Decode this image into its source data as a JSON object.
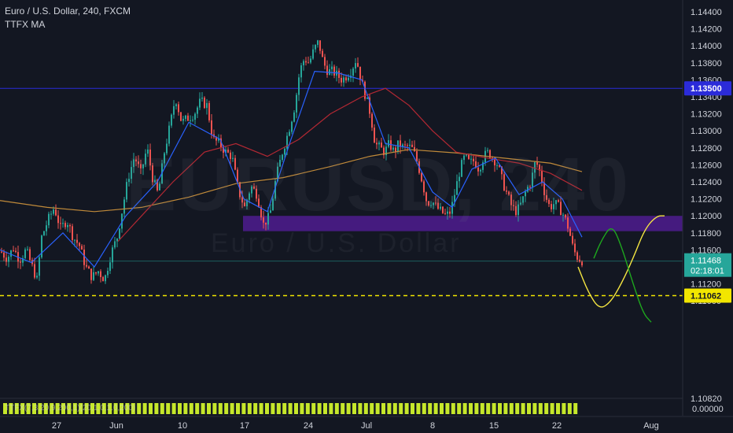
{
  "header": {
    "symbol_title": "Euro / U.S. Dollar, 240, FXCM",
    "indicator_name": "TTFX MA",
    "volume_legend": "TTFX(7,3,20,9,200,1)(20,1.0,1.0,200)"
  },
  "watermark": {
    "ticker": "EURUSD, 240",
    "name": "Euro / U.S. Dollar"
  },
  "colors": {
    "background": "#131722",
    "candle_up": "#26a69a",
    "candle_down": "#ef5350",
    "resistance_line": "#2b2bd9",
    "support_line": "#f2e600",
    "zone": "#4b1c8a",
    "ma_fast": "#2962ff",
    "ma_mid": "#b22833",
    "ma_slow": "#c08a3a",
    "current_price_tag": "#26a69a",
    "projection_yellow": "#f5e642",
    "projection_green": "#1ea81e",
    "volume_bar": "#c6e72b"
  },
  "chart_data": {
    "type": "candlestick",
    "title": "Euro / U.S. Dollar, 240, FXCM",
    "y_axis": {
      "ticks": [
        "1.14400",
        "1.14200",
        "1.14000",
        "1.13800",
        "1.13600",
        "1.13400",
        "1.13200",
        "1.13000",
        "1.12800",
        "1.12600",
        "1.12400",
        "1.12200",
        "1.12000",
        "1.11800",
        "1.11600",
        "1.11400",
        "1.11200",
        "1.11000",
        "1.10820"
      ],
      "range": [
        1.1075,
        1.1445
      ]
    },
    "x_axis": {
      "ticks": [
        "27",
        "Jun",
        "10",
        "17",
        "24",
        "Jul",
        "8",
        "15",
        "22",
        "Aug"
      ]
    },
    "price_labels": {
      "resistance": "1.13500",
      "current": "1.11468",
      "countdown": "02:18:01",
      "support": "1.11062"
    },
    "levels": {
      "resistance": 1.135,
      "current": 1.11468,
      "support": 1.11062,
      "zone": [
        1.1182,
        1.12
      ]
    },
    "volume_axis_label": "0.00000",
    "price_path": [
      [
        0,
        1.1158
      ],
      [
        8,
        1.115
      ],
      [
        16,
        1.1162
      ],
      [
        24,
        1.1148
      ],
      [
        32,
        1.116
      ],
      [
        40,
        1.114
      ],
      [
        46,
        1.1125
      ],
      [
        52,
        1.1175
      ],
      [
        60,
        1.1195
      ],
      [
        68,
        1.121
      ],
      [
        76,
        1.1185
      ],
      [
        84,
        1.1195
      ],
      [
        92,
        1.1175
      ],
      [
        100,
        1.1165
      ],
      [
        108,
        1.114
      ],
      [
        116,
        1.1128
      ],
      [
        124,
        1.1135
      ],
      [
        132,
        1.1125
      ],
      [
        140,
        1.1155
      ],
      [
        148,
        1.1175
      ],
      [
        155,
        1.121
      ],
      [
        162,
        1.1245
      ],
      [
        170,
        1.127
      ],
      [
        178,
        1.125
      ],
      [
        186,
        1.128
      ],
      [
        193,
        1.1245
      ],
      [
        200,
        1.1225
      ],
      [
        208,
        1.1275
      ],
      [
        216,
        1.131
      ],
      [
        222,
        1.134
      ],
      [
        230,
        1.131
      ],
      [
        238,
        1.1315
      ],
      [
        246,
        1.132
      ],
      [
        254,
        1.1335
      ],
      [
        262,
        1.133
      ],
      [
        270,
        1.129
      ],
      [
        278,
        1.1285
      ],
      [
        286,
        1.1275
      ],
      [
        294,
        1.127
      ],
      [
        302,
        1.123
      ],
      [
        310,
        1.121
      ],
      [
        318,
        1.1235
      ],
      [
        326,
        1.1225
      ],
      [
        334,
        1.119
      ],
      [
        342,
        1.12
      ],
      [
        350,
        1.1245
      ],
      [
        358,
        1.1275
      ],
      [
        366,
        1.13
      ],
      [
        374,
        1.133
      ],
      [
        380,
        1.137
      ],
      [
        386,
        1.1385
      ],
      [
        392,
        1.138
      ],
      [
        398,
        1.1395
      ],
      [
        404,
        1.1405
      ],
      [
        410,
        1.138
      ],
      [
        416,
        1.137
      ],
      [
        422,
        1.137
      ],
      [
        428,
        1.1365
      ],
      [
        434,
        1.136
      ],
      [
        440,
        1.1365
      ],
      [
        446,
        1.1372
      ],
      [
        452,
        1.1385
      ],
      [
        458,
        1.136
      ],
      [
        464,
        1.134
      ],
      [
        470,
        1.132
      ],
      [
        476,
        1.1285
      ],
      [
        482,
        1.128
      ],
      [
        488,
        1.1275
      ],
      [
        494,
        1.1285
      ],
      [
        500,
        1.1275
      ],
      [
        506,
        1.1285
      ],
      [
        512,
        1.128
      ],
      [
        518,
        1.1282
      ],
      [
        524,
        1.1278
      ],
      [
        530,
        1.1262
      ],
      [
        536,
        1.124
      ],
      [
        542,
        1.1215
      ],
      [
        548,
        1.1218
      ],
      [
        554,
        1.121
      ],
      [
        560,
        1.1205
      ],
      [
        566,
        1.12
      ],
      [
        572,
        1.1205
      ],
      [
        578,
        1.123
      ],
      [
        584,
        1.1255
      ],
      [
        590,
        1.127
      ],
      [
        596,
        1.1262
      ],
      [
        602,
        1.1265
      ],
      [
        608,
        1.1255
      ],
      [
        614,
        1.127
      ],
      [
        620,
        1.1275
      ],
      [
        626,
        1.1268
      ],
      [
        632,
        1.126
      ],
      [
        638,
        1.124
      ],
      [
        644,
        1.1225
      ],
      [
        650,
        1.121
      ],
      [
        656,
        1.1205
      ],
      [
        662,
        1.1215
      ],
      [
        668,
        1.123
      ],
      [
        674,
        1.124
      ],
      [
        680,
        1.1265
      ],
      [
        686,
        1.125
      ],
      [
        692,
        1.1225
      ],
      [
        698,
        1.121
      ],
      [
        704,
        1.1215
      ],
      [
        710,
        1.121
      ],
      [
        716,
        1.12
      ],
      [
        722,
        1.1185
      ],
      [
        728,
        1.116
      ],
      [
        734,
        1.115
      ],
      [
        740,
        1.1147
      ]
    ],
    "ma_fast": [
      [
        0,
        1.116
      ],
      [
        40,
        1.1145
      ],
      [
        80,
        1.118
      ],
      [
        120,
        1.114
      ],
      [
        160,
        1.12
      ],
      [
        200,
        1.124
      ],
      [
        240,
        1.131
      ],
      [
        280,
        1.129
      ],
      [
        310,
        1.122
      ],
      [
        340,
        1.1205
      ],
      [
        370,
        1.129
      ],
      [
        400,
        1.137
      ],
      [
        430,
        1.1368
      ],
      [
        460,
        1.136
      ],
      [
        490,
        1.1285
      ],
      [
        520,
        1.128
      ],
      [
        550,
        1.1228
      ],
      [
        575,
        1.121
      ],
      [
        600,
        1.1255
      ],
      [
        630,
        1.1268
      ],
      [
        660,
        1.1225
      ],
      [
        690,
        1.124
      ],
      [
        715,
        1.122
      ],
      [
        740,
        1.1175
      ]
    ],
    "ma_mid": [
      [
        150,
        1.117
      ],
      [
        180,
        1.12
      ],
      [
        220,
        1.124
      ],
      [
        260,
        1.1275
      ],
      [
        300,
        1.1285
      ],
      [
        340,
        1.127
      ],
      [
        380,
        1.129
      ],
      [
        420,
        1.132
      ],
      [
        460,
        1.134
      ],
      [
        490,
        1.135
      ],
      [
        520,
        1.133
      ],
      [
        550,
        1.13
      ],
      [
        580,
        1.1275
      ],
      [
        620,
        1.1268
      ],
      [
        660,
        1.1262
      ],
      [
        700,
        1.125
      ],
      [
        740,
        1.123
      ]
    ],
    "ma_slow": [
      [
        0,
        1.1218
      ],
      [
        60,
        1.121
      ],
      [
        120,
        1.1205
      ],
      [
        180,
        1.121
      ],
      [
        240,
        1.1222
      ],
      [
        300,
        1.1238
      ],
      [
        360,
        1.1245
      ],
      [
        420,
        1.1258
      ],
      [
        470,
        1.127
      ],
      [
        520,
        1.1278
      ],
      [
        580,
        1.1274
      ],
      [
        640,
        1.1268
      ],
      [
        700,
        1.1262
      ],
      [
        740,
        1.1252
      ]
    ],
    "projection_yellow": [
      [
        735,
        1.114
      ],
      [
        748,
        1.111
      ],
      [
        762,
        1.109
      ],
      [
        776,
        1.1098
      ],
      [
        790,
        1.112
      ],
      [
        805,
        1.115
      ],
      [
        820,
        1.1185
      ],
      [
        835,
        1.12
      ],
      [
        845,
        1.12
      ]
    ],
    "projection_green": [
      [
        755,
        1.115
      ],
      [
        765,
        1.1172
      ],
      [
        778,
        1.119
      ],
      [
        790,
        1.1165
      ],
      [
        805,
        1.112
      ],
      [
        818,
        1.1085
      ],
      [
        828,
        1.1075
      ]
    ]
  }
}
